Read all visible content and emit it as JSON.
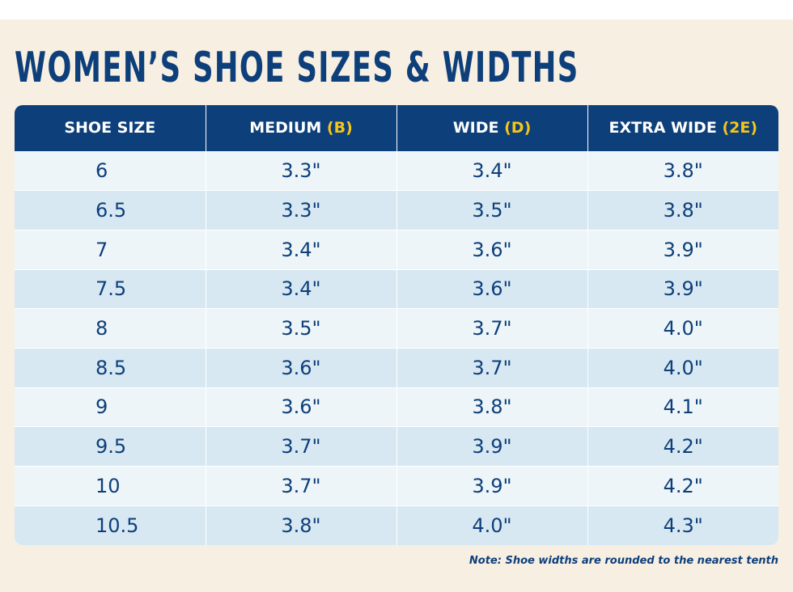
{
  "title": "WOMEN’S SHOE SIZES & WIDTHS",
  "colors": {
    "header_bg": "#0d3f7a",
    "accent": "#f5c518",
    "text": "#0d3f7a",
    "background": "#f8efe3",
    "row_light": "#edf5f8",
    "row_dark": "#d7e8f2"
  },
  "table": {
    "headers": [
      {
        "label": "SHOE SIZE",
        "code": ""
      },
      {
        "label": "MEDIUM",
        "code": "(B)"
      },
      {
        "label": "WIDE",
        "code": "(D)"
      },
      {
        "label": "EXTRA WIDE",
        "code": "(2E)"
      }
    ],
    "rows": [
      [
        "6",
        "3.3\"",
        "3.4\"",
        "3.8\""
      ],
      [
        "6.5",
        "3.3\"",
        "3.5\"",
        "3.8\""
      ],
      [
        "7",
        "3.4\"",
        "3.6\"",
        "3.9\""
      ],
      [
        "7.5",
        "3.4\"",
        "3.6\"",
        "3.9\""
      ],
      [
        "8",
        "3.5\"",
        "3.7\"",
        "4.0\""
      ],
      [
        "8.5",
        "3.6\"",
        "3.7\"",
        "4.0\""
      ],
      [
        "9",
        "3.6\"",
        "3.8\"",
        "4.1\""
      ],
      [
        "9.5",
        "3.7\"",
        "3.9\"",
        "4.2\""
      ],
      [
        "10",
        "3.7\"",
        "3.9\"",
        "4.2\""
      ],
      [
        "10.5",
        "3.8\"",
        "4.0\"",
        "4.3\""
      ]
    ]
  },
  "note": "Note: Shoe widths are rounded to the nearest tenth"
}
